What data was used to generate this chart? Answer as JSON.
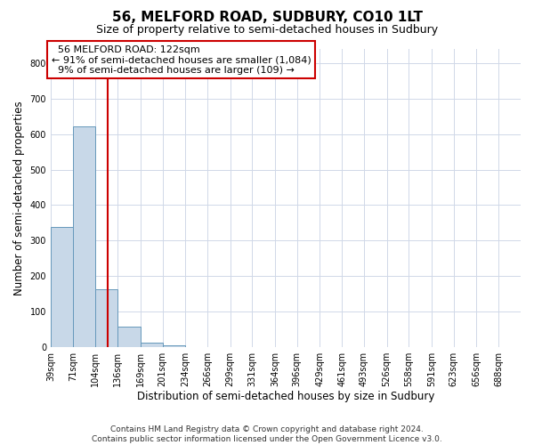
{
  "title": "56, MELFORD ROAD, SUDBURY, CO10 1LT",
  "subtitle": "Size of property relative to semi-detached houses in Sudbury",
  "xlabel": "Distribution of semi-detached houses by size in Sudbury",
  "ylabel": "Number of semi-detached properties",
  "bins": [
    "39sqm",
    "71sqm",
    "104sqm",
    "136sqm",
    "169sqm",
    "201sqm",
    "234sqm",
    "266sqm",
    "299sqm",
    "331sqm",
    "364sqm",
    "396sqm",
    "429sqm",
    "461sqm",
    "493sqm",
    "526sqm",
    "558sqm",
    "591sqm",
    "623sqm",
    "656sqm",
    "688sqm"
  ],
  "bin_edges": [
    39,
    71,
    104,
    136,
    169,
    201,
    234,
    266,
    299,
    331,
    364,
    396,
    429,
    461,
    493,
    526,
    558,
    591,
    623,
    656,
    688
  ],
  "bar_heights": [
    338,
    622,
    163,
    58,
    12,
    5,
    0,
    0,
    0,
    0,
    0,
    0,
    0,
    0,
    0,
    0,
    0,
    0,
    0,
    0
  ],
  "bar_color": "#c8d8e8",
  "bar_edge_color": "#6699bb",
  "property_size": 122,
  "property_label": "56 MELFORD ROAD: 122sqm",
  "pct_smaller": 91,
  "count_smaller": 1084,
  "pct_larger": 9,
  "count_larger": 109,
  "vline_color": "#cc0000",
  "annotation_box_color": "#cc0000",
  "grid_color": "#d0d8e8",
  "ylim": [
    0,
    840
  ],
  "yticks": [
    0,
    100,
    200,
    300,
    400,
    500,
    600,
    700,
    800
  ],
  "footer_line1": "Contains HM Land Registry data © Crown copyright and database right 2024.",
  "footer_line2": "Contains public sector information licensed under the Open Government Licence v3.0.",
  "title_fontsize": 11,
  "subtitle_fontsize": 9,
  "axis_label_fontsize": 8.5,
  "tick_fontsize": 7,
  "annotation_fontsize": 8,
  "footer_fontsize": 6.5
}
